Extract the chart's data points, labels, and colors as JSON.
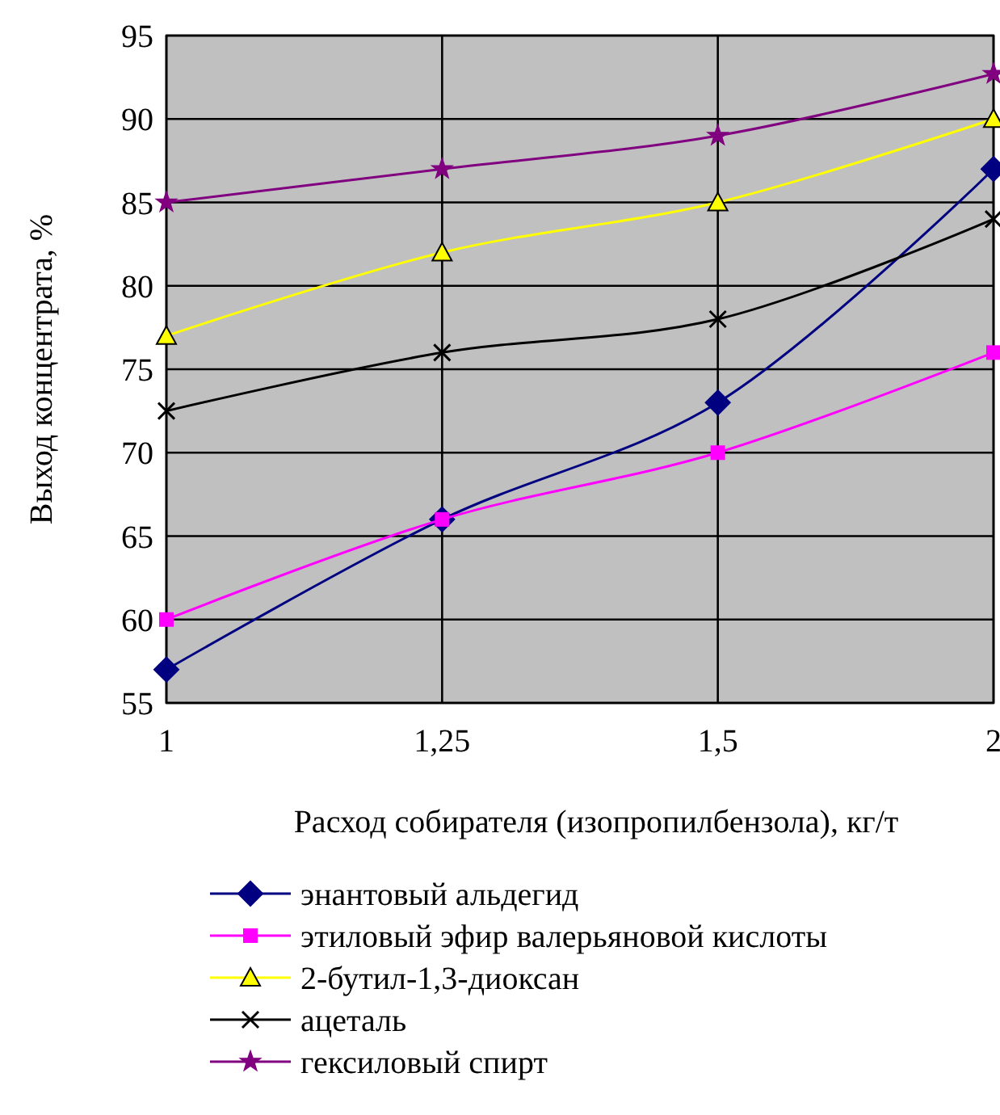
{
  "chart_data": {
    "type": "line",
    "xlabel": "Расход собирателя (изопропилбензола), кг/т",
    "ylabel": "Выход концентрата, %",
    "categories": [
      "1",
      "1,25",
      "1,5",
      "2"
    ],
    "ylim": [
      55,
      95
    ],
    "yticks": [
      55,
      60,
      65,
      70,
      75,
      80,
      85,
      90,
      95
    ],
    "grid": true,
    "legend": "bottom",
    "series": [
      {
        "name": "энантовый альдегид",
        "color": "#000080",
        "marker": "diamond",
        "values": [
          57,
          66,
          73,
          87
        ]
      },
      {
        "name": "этиловый эфир валерьяновой кислоты",
        "color": "#ff00ff",
        "marker": "square",
        "values": [
          60,
          66,
          70,
          76
        ]
      },
      {
        "name": "2-бутил-1,3-диоксан",
        "color": "#ffff00",
        "marker": "triangle",
        "values": [
          77,
          82,
          85,
          90
        ]
      },
      {
        "name": "ацеталь",
        "color": "#000000",
        "marker": "cross",
        "values": [
          72.5,
          76,
          78,
          84
        ]
      },
      {
        "name": "гексиловый спирт",
        "color": "#800080",
        "marker": "star",
        "values": [
          85,
          87,
          89,
          92.7
        ]
      }
    ]
  }
}
